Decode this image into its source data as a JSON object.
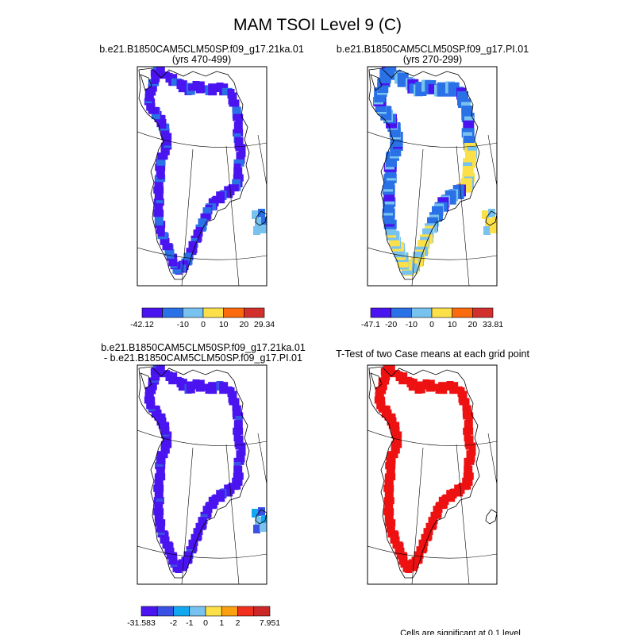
{
  "chart_data": {
    "type": "map",
    "title": "MAM TSOI Level 9 (C)",
    "footnote": "Cells are significant at 0.1 level",
    "panels": [
      {
        "id": "case",
        "title_lines": [
          "b.e21.B1850CAM5CLM50SP.f09_g17.21ka.01",
          "(yrs 470-499)"
        ],
        "colorbar": {
          "colors": [
            "#4a14f0",
            "#2a70e6",
            "#78c2ef",
            "#fbe04a",
            "#fb6a0c",
            "#d2302c"
          ],
          "labels": [
            "-42.12",
            "-10",
            "0",
            "10",
            "20",
            "29.34"
          ],
          "label_ticks": [
            0,
            2,
            3,
            4,
            5,
            6
          ]
        }
      },
      {
        "id": "control",
        "title_lines": [
          "b.e21.B1850CAM5CLM50SP.f09_g17.PI.01",
          "(yrs 270-299)"
        ],
        "colorbar": {
          "colors": [
            "#4a14f0",
            "#2a70e6",
            "#78c2ef",
            "#fbe04a",
            "#fb6a0c",
            "#d2302c"
          ],
          "labels": [
            "-47.1",
            "-20",
            "-10",
            "0",
            "10",
            "20",
            "33.81"
          ],
          "label_ticks": [
            0,
            1,
            2,
            3,
            4,
            5,
            6
          ]
        }
      },
      {
        "id": "difference",
        "title_lines": [
          "b.e21.B1850CAM5CLM50SP.f09_g17.21ka.01",
          "- b.e21.B1850CAM5CLM50SP.f09_g17.PI.01"
        ],
        "colorbar": {
          "colors": [
            "#4a14f0",
            "#3a52e4",
            "#12a8f0",
            "#78c2ef",
            "#fbe04a",
            "#fba010",
            "#f0301c",
            "#cc2828"
          ],
          "labels": [
            "-31.583",
            "-2",
            "-1",
            "0",
            "1",
            "2",
            "7.951"
          ],
          "label_ticks": [
            0,
            2,
            3,
            4,
            5,
            6,
            8
          ]
        }
      },
      {
        "id": "ttest",
        "title_lines": [
          "T-Test of two Case means at each grid point"
        ],
        "colorbar": null
      }
    ]
  }
}
